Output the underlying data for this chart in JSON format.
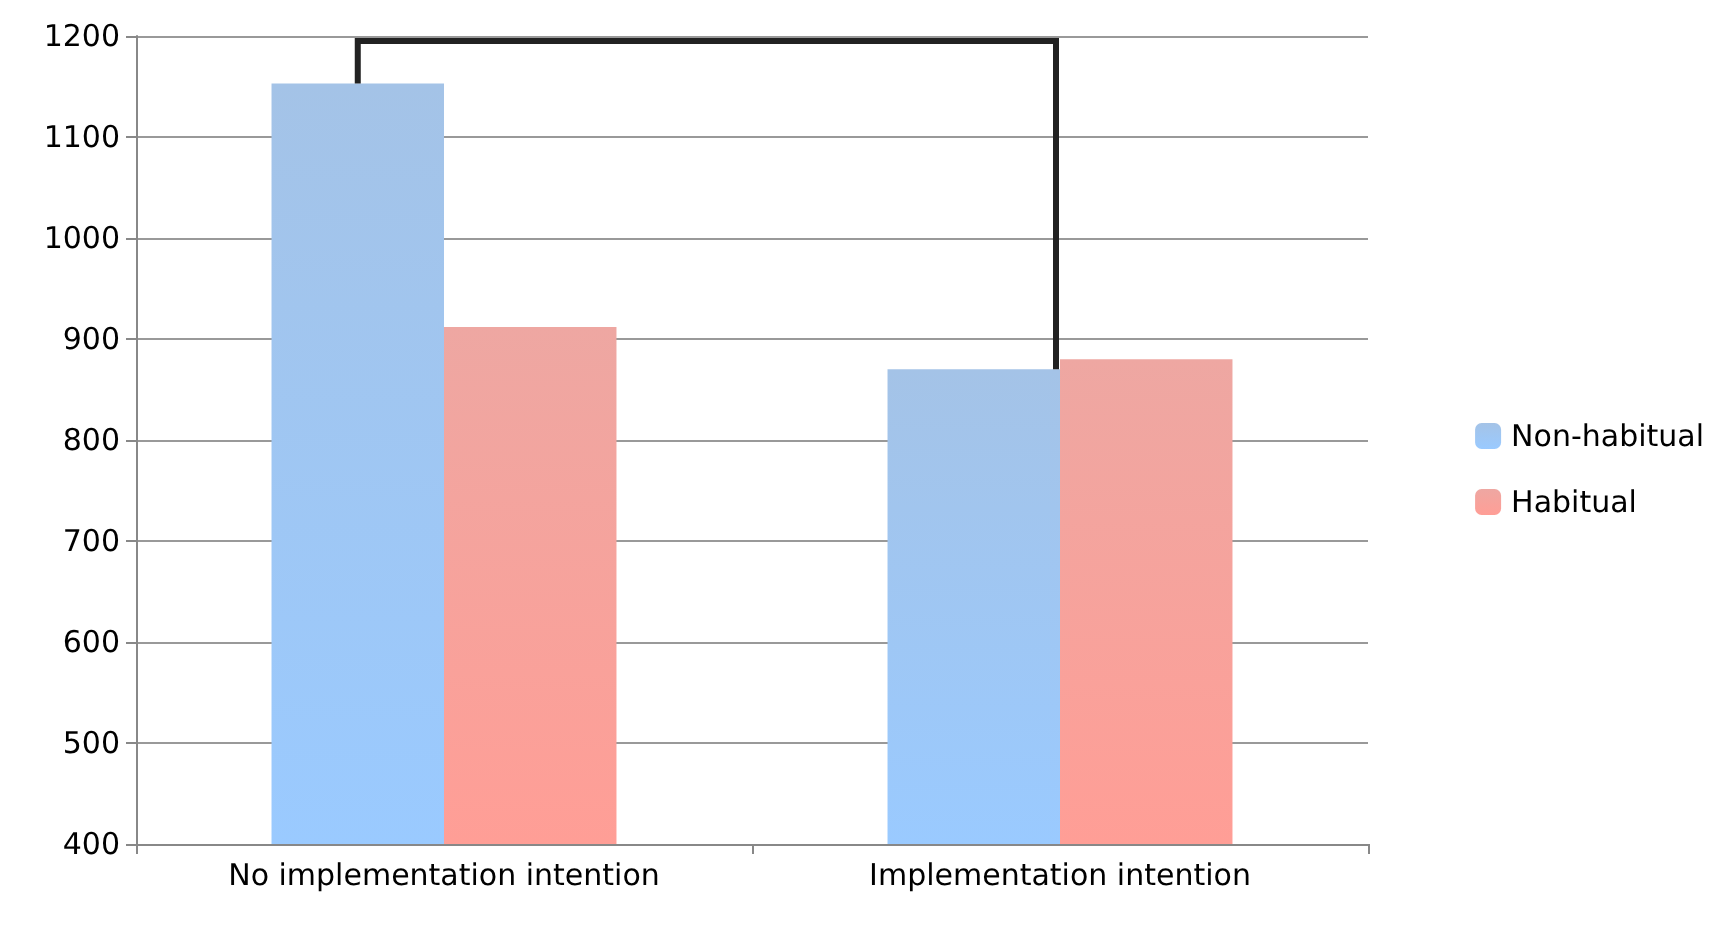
{
  "chart_data": {
    "type": "bar",
    "categories": [
      "No implementation intention",
      "Implementation intention"
    ],
    "series": [
      {
        "name": "Non-habitual",
        "color": "#86b0e0",
        "values": [
          1153,
          870
        ]
      },
      {
        "name": "Habitual",
        "color": "#e98a83",
        "values": [
          912,
          880
        ]
      }
    ],
    "ylim": [
      400,
      1200
    ],
    "yticks": [
      400,
      500,
      600,
      700,
      800,
      900,
      1000,
      1100,
      1200
    ],
    "grid": "y",
    "legend": "right"
  }
}
